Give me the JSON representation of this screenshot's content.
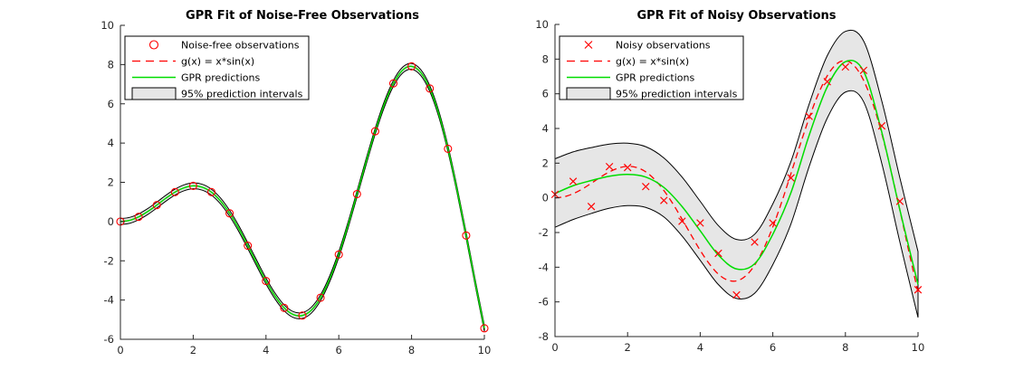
{
  "page": {
    "background": "#ffffff"
  },
  "colors": {
    "marker_red": "#ff0000",
    "true_fn_red": "#ff0000",
    "gpr_green": "#00dd00",
    "band_fill": "#e6e6e6",
    "band_edge": "#000000",
    "axis": "#262626",
    "tick_label": "#262626",
    "legend_bg": "#ffffff",
    "legend_border": "#000000",
    "title_color": "#000000"
  },
  "shared": {
    "true_function_label": "g(x) = x*sin(x)",
    "g_x": [
      0,
      0.25,
      0.5,
      0.75,
      1,
      1.25,
      1.5,
      1.75,
      2,
      2.25,
      2.5,
      2.75,
      3,
      3.25,
      3.5,
      3.75,
      4,
      4.25,
      4.5,
      4.75,
      5,
      5.25,
      5.5,
      5.75,
      6,
      6.25,
      6.5,
      6.75,
      7,
      7.25,
      7.5,
      7.75,
      8,
      8.25,
      8.5,
      8.75,
      9,
      9.25,
      9.5,
      9.75,
      10
    ],
    "g_y": [
      0,
      0.06,
      0.24,
      0.51,
      0.84,
      1.19,
      1.5,
      1.72,
      1.82,
      1.75,
      1.5,
      1.05,
      0.42,
      -0.35,
      -1.23,
      -2.14,
      -3.03,
      -3.8,
      -4.4,
      -4.74,
      -4.79,
      -4.51,
      -3.88,
      -2.92,
      -1.68,
      -0.21,
      1.4,
      3.04,
      4.6,
      5.97,
      7.04,
      7.71,
      7.91,
      7.6,
      6.78,
      5.47,
      3.71,
      1.61,
      -0.71,
      -3.12,
      -5.44
    ]
  },
  "chart_data": [
    {
      "type": "line",
      "title": "GPR Fit of Noise-Free Observations",
      "xlabel": "",
      "ylabel": "",
      "xlim": [
        0,
        10
      ],
      "ylim": [
        -6,
        10
      ],
      "xticks": [
        0,
        2,
        4,
        6,
        8,
        10
      ],
      "yticks": [
        -6,
        -4,
        -2,
        0,
        2,
        4,
        6,
        8,
        10
      ],
      "grid": false,
      "legend_position": "northwest",
      "marker": "circle",
      "legend": [
        {
          "label": "Noise-free observations",
          "style": "marker"
        },
        {
          "label": "g(x) = x*sin(x)",
          "style": "dashed"
        },
        {
          "label": "GPR predictions",
          "style": "solid"
        },
        {
          "label": "95% prediction intervals",
          "style": "patch"
        }
      ],
      "observations": {
        "x": [
          0,
          0.5,
          1,
          1.5,
          2,
          2.5,
          3,
          3.5,
          4,
          4.5,
          5,
          5.5,
          6,
          6.5,
          7,
          7.5,
          8,
          8.5,
          9,
          9.5,
          10
        ],
        "y": [
          0,
          0.24,
          0.84,
          1.5,
          1.82,
          1.5,
          0.42,
          -1.23,
          -3.03,
          -4.4,
          -4.79,
          -3.88,
          -1.68,
          1.4,
          4.6,
          7.04,
          7.91,
          6.78,
          3.71,
          -0.71,
          -5.44
        ]
      },
      "gpr_mean_follows_true_function": true,
      "band": {
        "halfwidth": 0.15
      }
    },
    {
      "type": "line",
      "title": "GPR Fit of Noisy Observations",
      "xlabel": "",
      "ylabel": "",
      "xlim": [
        0,
        10
      ],
      "ylim": [
        -8,
        10
      ],
      "xticks": [
        0,
        2,
        4,
        6,
        8,
        10
      ],
      "yticks": [
        -8,
        -6,
        -4,
        -2,
        0,
        2,
        4,
        6,
        8,
        10
      ],
      "grid": false,
      "legend_position": "northwest",
      "marker": "x",
      "legend": [
        {
          "label": "Noisy observations",
          "style": "marker"
        },
        {
          "label": "g(x) = x*sin(x)",
          "style": "dashed"
        },
        {
          "label": "GPR predictions",
          "style": "solid"
        },
        {
          "label": "95% prediction intervals",
          "style": "patch"
        }
      ],
      "observations": {
        "x": [
          0,
          0.5,
          1,
          1.5,
          2,
          2.5,
          3,
          3.5,
          4,
          4.5,
          5,
          5.5,
          6,
          6.5,
          7,
          7.5,
          8,
          8.5,
          9,
          9.5,
          10
        ],
        "y": [
          0.2,
          0.95,
          -0.5,
          1.8,
          1.75,
          0.65,
          -0.15,
          -1.35,
          -1.45,
          -3.2,
          -5.6,
          -2.55,
          -1.45,
          1.15,
          4.7,
          6.7,
          7.55,
          7.35,
          4.15,
          -0.2,
          -5.3
        ]
      },
      "gpr_mean": {
        "x": [
          0,
          0.5,
          1,
          1.5,
          2,
          2.5,
          3,
          3.5,
          4,
          4.5,
          5,
          5.5,
          6,
          6.5,
          7,
          7.5,
          8,
          8.5,
          9,
          9.5,
          10
        ],
        "y": [
          0.25,
          0.7,
          1.0,
          1.25,
          1.35,
          1.2,
          0.6,
          -0.5,
          -1.9,
          -3.3,
          -4.1,
          -3.8,
          -2.1,
          0.3,
          3.6,
          6.4,
          7.85,
          7.3,
          3.8,
          -0.7,
          -5.0
        ]
      },
      "band": {
        "x": [
          0,
          0.5,
          1,
          1.5,
          2,
          2.5,
          3,
          3.5,
          4,
          4.5,
          5,
          5.5,
          6,
          6.5,
          7,
          7.5,
          8,
          8.5,
          9,
          9.5,
          10
        ],
        "upper": [
          2.25,
          2.65,
          2.9,
          3.1,
          3.15,
          2.95,
          2.3,
          1.2,
          -0.2,
          -1.6,
          -2.4,
          -2.1,
          -0.35,
          2.1,
          5.4,
          8.2,
          9.6,
          9.05,
          5.6,
          1.15,
          -3.1
        ],
        "lower": [
          -1.7,
          -1.25,
          -0.9,
          -0.6,
          -0.45,
          -0.55,
          -1.1,
          -2.2,
          -3.6,
          -5.0,
          -5.8,
          -5.5,
          -3.85,
          -1.5,
          1.8,
          4.6,
          6.1,
          5.55,
          2.0,
          -2.55,
          -6.9
        ]
      }
    }
  ]
}
